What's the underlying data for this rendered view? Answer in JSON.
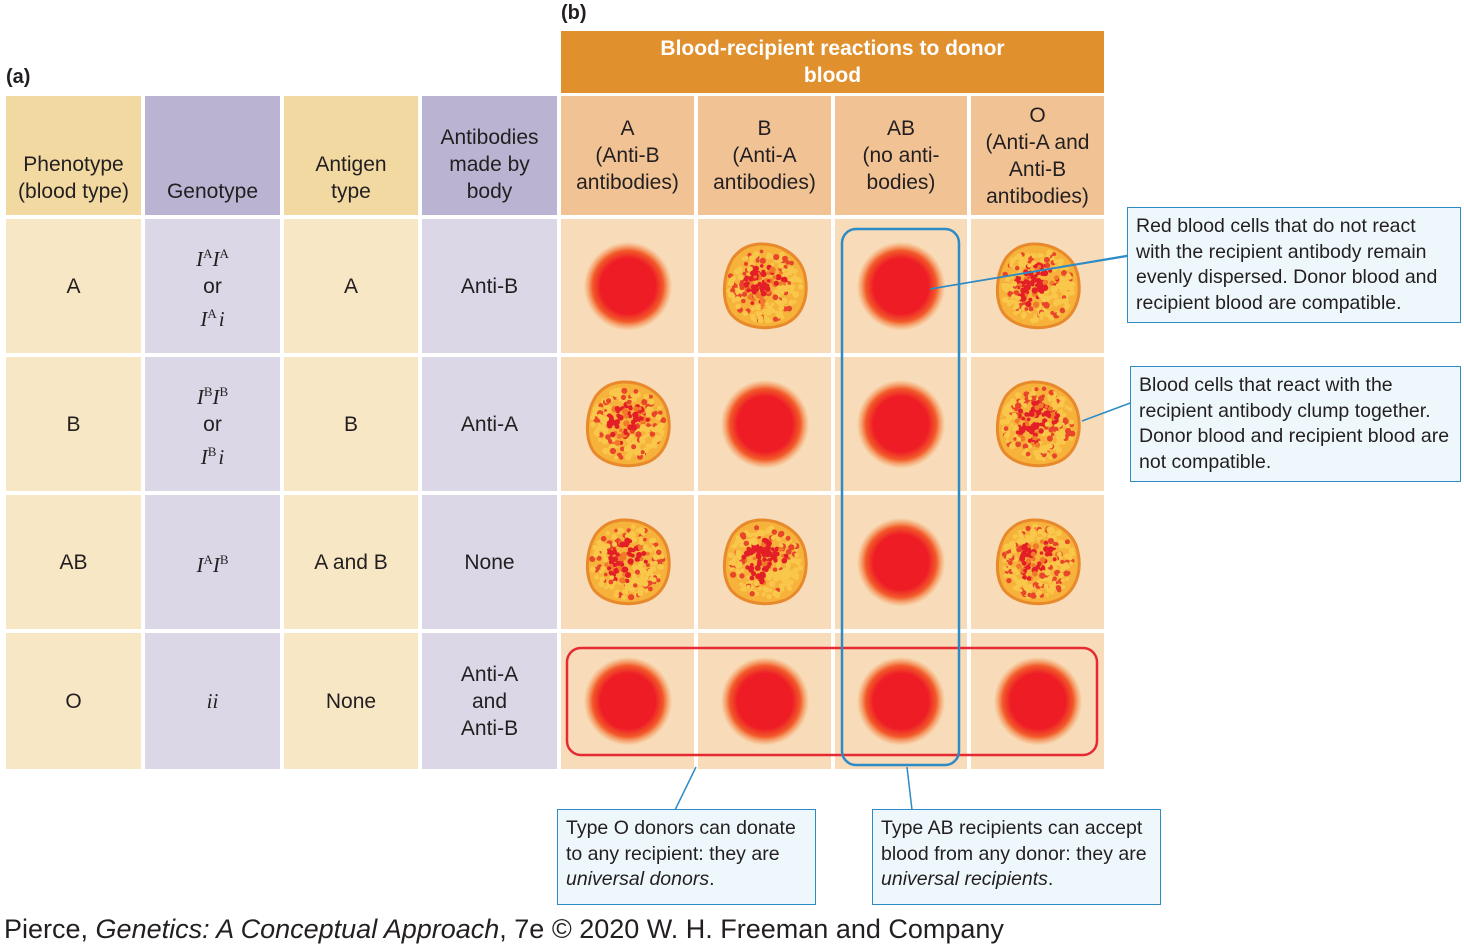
{
  "panel_labels": {
    "a": "(a)",
    "b": "(b)"
  },
  "banner": "Blood-recipient reactions to donor blood",
  "left_headers": {
    "phenotype": "Phenotype (blood type)",
    "genotype": "Genotype",
    "antigen": "Antigen type",
    "antibodies": "Antibodies made by body"
  },
  "recipient_headers": [
    {
      "type": "A",
      "antibodies": "(Anti-B antibodies)"
    },
    {
      "type": "B",
      "antibodies": "(Anti-A antibodies)"
    },
    {
      "type": "AB",
      "antibodies": "(no anti-bodies)"
    },
    {
      "type": "O",
      "antibodies": "(Anti-A and Anti-B antibodies)"
    }
  ],
  "rows": [
    {
      "phenotype": "A",
      "genotype": [
        "I^A I^A",
        "or",
        "I^A i"
      ],
      "antigen": "A",
      "antibodies": "Anti-B",
      "reactions": [
        "compatible",
        "clump",
        "compatible",
        "clump"
      ]
    },
    {
      "phenotype": "B",
      "genotype": [
        "I^B I^B",
        "or",
        "I^B i"
      ],
      "antigen": "B",
      "antibodies": "Anti-A",
      "reactions": [
        "clump",
        "compatible",
        "compatible",
        "clump"
      ]
    },
    {
      "phenotype": "AB",
      "genotype": [
        "I^A I^B"
      ],
      "antigen": "A and B",
      "antibodies": "None",
      "reactions": [
        "clump",
        "clump",
        "compatible",
        "clump"
      ]
    },
    {
      "phenotype": "O",
      "genotype": [
        "ii"
      ],
      "antigen": "None",
      "antibodies": "Anti-A and Anti-B",
      "reactions": [
        "compatible",
        "compatible",
        "compatible",
        "compatible"
      ]
    }
  ],
  "callouts": {
    "compatible": "Red blood cells that do not react with the recipient antibody remain evenly dispersed. Donor blood and recipient blood are compatible.",
    "clump": "Blood cells that react with the recipient antibody clump together. Donor blood and recipient blood are not compatible.",
    "universal_donor": {
      "text": "Type O donors can donate to any recipient: they are",
      "emphasis": "universal donors",
      "end": "."
    },
    "universal_recipient": {
      "text": "Type AB recipients can accept blood from any donor: they are",
      "emphasis": "universal recipients",
      "end": "."
    }
  },
  "caption": {
    "author": "Pierce, ",
    "title": "Genetics: A Conceptual Approach",
    "rest": ", 7e © 2020 W. H. Freeman and Company"
  },
  "colors": {
    "banner": "#e0902d",
    "highlight_donor": "#e52a33",
    "highlight_recipient": "#2e8bc6",
    "callout_border": "#2e8bc6"
  }
}
